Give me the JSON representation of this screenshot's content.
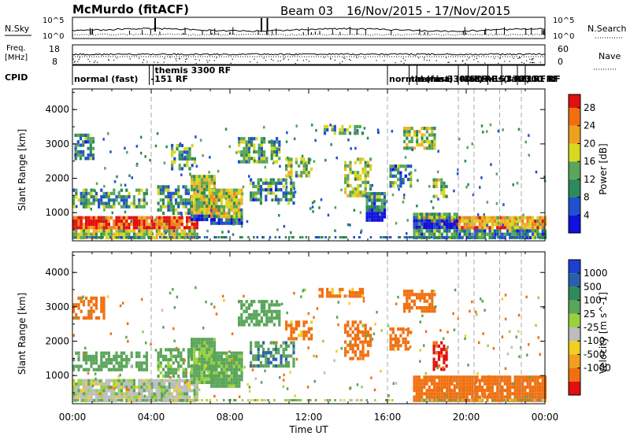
{
  "header": {
    "station": "McMurdo (fitACF)",
    "beam": "Beam 03",
    "dates": "16/Nov/2015 - 17/Nov/2015"
  },
  "top_panels": {
    "nsky_label": "N.Sky",
    "nsky_ticks": [
      "10^5",
      "10^0"
    ],
    "nsearch_label": "N.Search",
    "nsearch_ticks": [
      "10^5",
      "10^0"
    ],
    "freq_label": [
      "Freq.",
      "[MHz]"
    ],
    "freq_ticks": [
      "18",
      "8"
    ],
    "nave_label": "Nave",
    "nave_ticks": [
      "60",
      "0"
    ],
    "cpid_label": "CPID",
    "cpid_entries": [
      {
        "time": 0.0,
        "label": "normal (fast)"
      },
      {
        "time": 3.9,
        "label": "-151 RF"
      },
      {
        "time": 4.1,
        "label": "themis 3300 RF"
      },
      {
        "time": 16.0,
        "label": "normal (fast)"
      },
      {
        "time": 17.1,
        "label": "themis 3300 RF"
      },
      {
        "time": 17.5,
        "label": "normal (fast)"
      },
      {
        "time": 19.6,
        "label": "-151 RF"
      },
      {
        "time": 20.1,
        "label": "themis 3300 RF"
      },
      {
        "time": 21.1,
        "label": "-151 RF"
      },
      {
        "time": 21.8,
        "label": "(fast)"
      },
      {
        "time": 22.6,
        "label": "3300 RF"
      },
      {
        "time": 23.0,
        "label": "151 RF"
      }
    ]
  },
  "chart_data": [
    {
      "type": "heatmap",
      "name": "power-panel",
      "ylabel": "Slant Range [km]",
      "xlabel": "",
      "xlim": [
        0,
        24
      ],
      "ylim": [
        180,
        4600
      ],
      "y_ticks": [
        1000,
        2000,
        3000,
        4000
      ],
      "x_ticks": [
        "00:00",
        "04:00",
        "08:00",
        "12:00",
        "16:00",
        "20:00",
        "00:00"
      ],
      "colorbar": {
        "label": "Power [dB]",
        "ticks": [
          4,
          8,
          12,
          16,
          20,
          24,
          28
        ],
        "range": [
          0,
          31
        ]
      },
      "boundaries_h": [
        4.0,
        16.0,
        19.6,
        20.4,
        21.7,
        22.8
      ],
      "echo_regions": [
        {
          "t0": 0.0,
          "t1": 6.3,
          "r0": 300,
          "r1": 900,
          "v": 29
        },
        {
          "t0": 0.0,
          "t1": 3.8,
          "r0": 1200,
          "r1": 1700,
          "v": 12
        },
        {
          "t0": 0.1,
          "t1": 1.0,
          "r0": 2600,
          "r1": 3300,
          "v": 10
        },
        {
          "t0": 4.3,
          "t1": 6.0,
          "r0": 1000,
          "r1": 1800,
          "v": 11
        },
        {
          "t0": 5.0,
          "t1": 6.2,
          "r0": 2300,
          "r1": 3000,
          "v": 12
        },
        {
          "t0": 6.0,
          "t1": 7.2,
          "r0": 800,
          "r1": 2100,
          "v": 17
        },
        {
          "t0": 7.0,
          "t1": 8.6,
          "r0": 700,
          "r1": 1700,
          "v": 18
        },
        {
          "t0": 8.4,
          "t1": 10.5,
          "r0": 2500,
          "r1": 3200,
          "v": 12
        },
        {
          "t0": 9.0,
          "t1": 11.3,
          "r0": 1300,
          "r1": 2000,
          "v": 10
        },
        {
          "t0": 10.8,
          "t1": 12.2,
          "r0": 2100,
          "r1": 2600,
          "v": 14
        },
        {
          "t0": 13.8,
          "t1": 15.2,
          "r0": 1500,
          "r1": 2600,
          "v": 16
        },
        {
          "t0": 12.5,
          "t1": 14.7,
          "r0": 3300,
          "r1": 3550,
          "v": 12
        },
        {
          "t0": 14.9,
          "t1": 15.9,
          "r0": 800,
          "r1": 1600,
          "v": 10
        },
        {
          "t0": 16.1,
          "t1": 17.2,
          "r0": 1800,
          "r1": 2400,
          "v": 10
        },
        {
          "t0": 16.8,
          "t1": 18.4,
          "r0": 2900,
          "r1": 3500,
          "v": 17
        },
        {
          "t0": 18.3,
          "t1": 19.0,
          "r0": 1500,
          "r1": 2000,
          "v": 16
        },
        {
          "t0": 17.3,
          "t1": 24.0,
          "r0": 300,
          "r1": 900,
          "v": 22
        },
        {
          "t0": 17.3,
          "t1": 19.6,
          "r0": 600,
          "r1": 1000,
          "v": 14
        }
      ]
    },
    {
      "type": "heatmap",
      "name": "velocity-panel",
      "ylabel": "Slant Range [km]",
      "xlabel": "Time UT",
      "xlim": [
        0,
        24
      ],
      "ylim": [
        180,
        4600
      ],
      "y_ticks": [
        1000,
        2000,
        3000,
        4000
      ],
      "x_ticks": [
        "00:00",
        "04:00",
        "08:00",
        "12:00",
        "16:00",
        "20:00",
        "00:00"
      ],
      "colorbar": {
        "label": "Velocity [m s^-1]",
        "ticks": [
          "1000",
          "500",
          "100",
          "25",
          "-25",
          "-100",
          "-500",
          "-1000"
        ]
      },
      "boundaries_h": [
        4.0,
        16.0,
        19.6,
        20.4,
        21.7,
        22.8
      ],
      "echo_regions": [
        {
          "t0": 0.0,
          "t1": 6.3,
          "r0": 300,
          "r1": 900,
          "v": "gs"
        },
        {
          "t0": 0.0,
          "t1": 1.6,
          "r0": 2700,
          "r1": 3300,
          "v": -200
        },
        {
          "t0": 0.0,
          "t1": 3.8,
          "r0": 1200,
          "r1": 1700,
          "v": 200
        },
        {
          "t0": 4.3,
          "t1": 6.0,
          "r0": 1000,
          "r1": 1800,
          "v": 150
        },
        {
          "t0": 6.0,
          "t1": 7.2,
          "r0": 800,
          "r1": 2100,
          "v": 120
        },
        {
          "t0": 7.0,
          "t1": 8.6,
          "r0": 700,
          "r1": 1700,
          "v": 150
        },
        {
          "t0": 8.4,
          "t1": 10.5,
          "r0": 2500,
          "r1": 3200,
          "v": 300
        },
        {
          "t0": 9.0,
          "t1": 11.3,
          "r0": 1300,
          "r1": 2000,
          "v": 400
        },
        {
          "t0": 10.8,
          "t1": 12.2,
          "r0": 2100,
          "r1": 2600,
          "v": -150
        },
        {
          "t0": 13.8,
          "t1": 15.2,
          "r0": 1500,
          "r1": 2600,
          "v": -300
        },
        {
          "t0": 12.5,
          "t1": 14.7,
          "r0": 3300,
          "r1": 3550,
          "v": -150
        },
        {
          "t0": 16.1,
          "t1": 17.2,
          "r0": 1800,
          "r1": 2400,
          "v": -300
        },
        {
          "t0": 16.8,
          "t1": 18.4,
          "r0": 2900,
          "r1": 3500,
          "v": -200
        },
        {
          "t0": 18.3,
          "t1": 19.0,
          "r0": 1200,
          "r1": 2000,
          "v": -700
        },
        {
          "t0": 17.3,
          "t1": 24.0,
          "r0": 300,
          "r1": 1000,
          "v": -300
        }
      ]
    }
  ]
}
